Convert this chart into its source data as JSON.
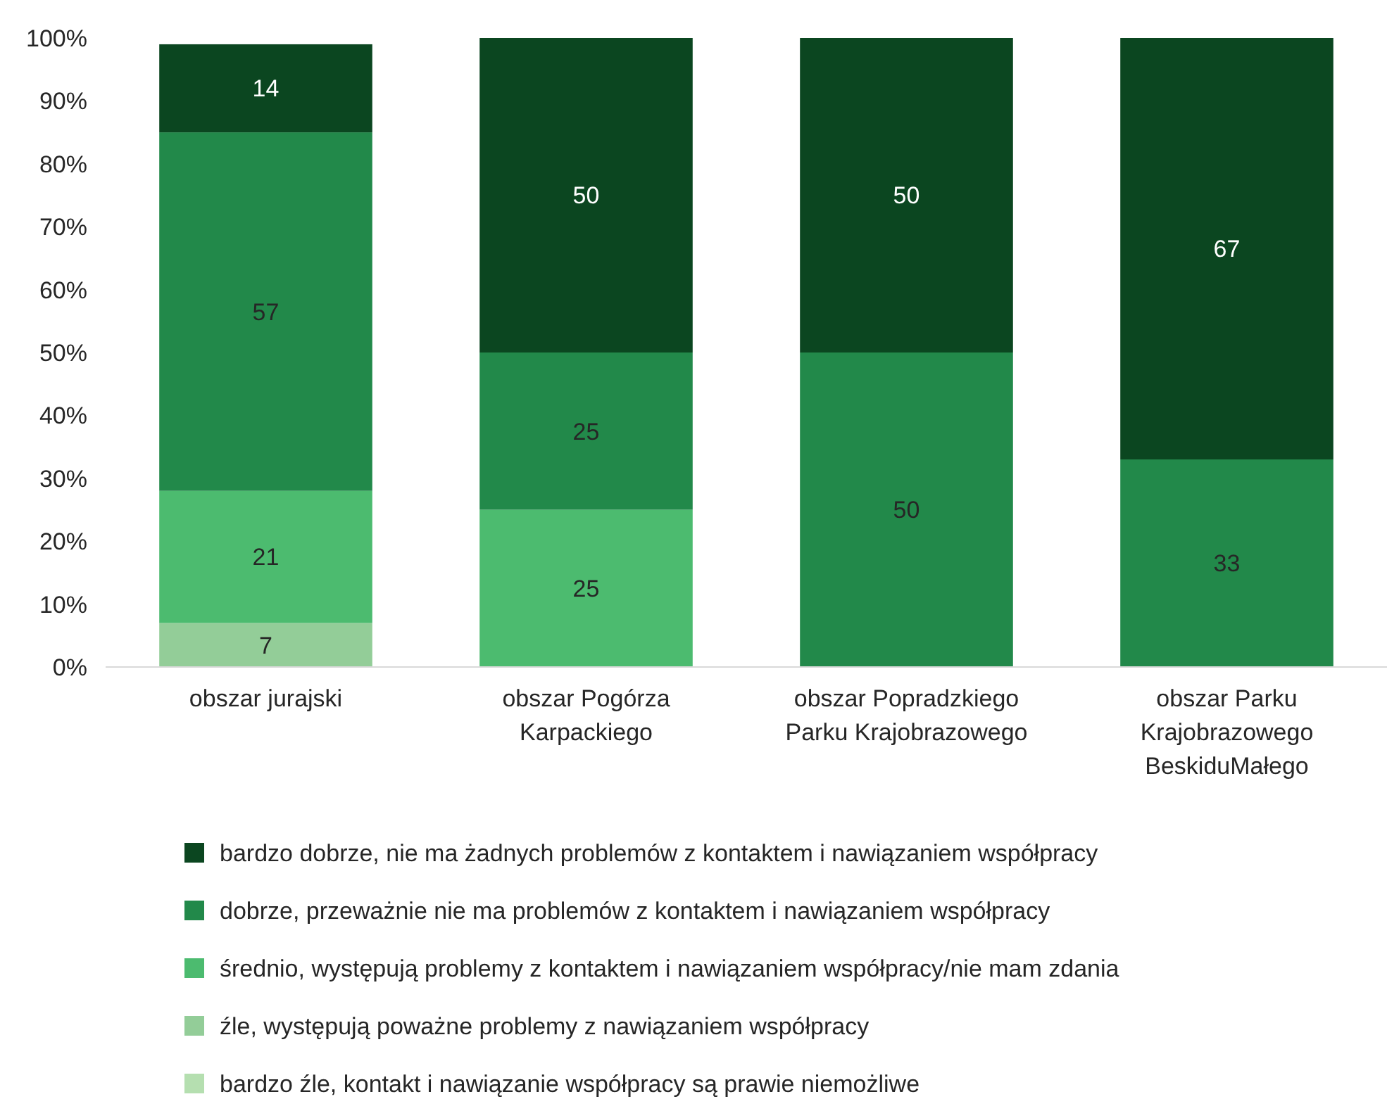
{
  "chart_data": {
    "type": "bar",
    "stacked": true,
    "categories": [
      "obszar jurajski",
      "obszar Pogórza Karpackiego",
      "obszar Popradzkiego Parku Krajobrazowego",
      "obszar Parku Krajobrazowego BeskiduMałego"
    ],
    "ylim": [
      0,
      100
    ],
    "yticks": [
      {
        "value": 0,
        "label": "0%"
      },
      {
        "value": 10,
        "label": "10%"
      },
      {
        "value": 20,
        "label": "20%"
      },
      {
        "value": 30,
        "label": "30%"
      },
      {
        "value": 40,
        "label": "40%"
      },
      {
        "value": 50,
        "label": "50%"
      },
      {
        "value": 60,
        "label": "60%"
      },
      {
        "value": 70,
        "label": "70%"
      },
      {
        "value": 80,
        "label": "80%"
      },
      {
        "value": 90,
        "label": "90%"
      },
      {
        "value": 100,
        "label": "100%"
      }
    ],
    "grid": false,
    "legend": "bottom",
    "series": [
      {
        "name": "bardzo źle, kontakt i nawiązanie współpracy są prawie niemożliwe",
        "color": "#b5dfb0",
        "values": [
          0,
          0,
          0,
          0
        ],
        "value_labels": [
          null,
          null,
          null,
          null
        ]
      },
      {
        "name": "źle, występują poważne problemy z nawiązaniem współpracy",
        "color": "#93cd98",
        "values": [
          7,
          0,
          0,
          0
        ],
        "value_labels": [
          "7",
          null,
          null,
          null
        ]
      },
      {
        "name": "średnio, występują problemy z kontaktem i nawiązaniem współpracy/nie mam zdania",
        "color": "#4cbb6f",
        "values": [
          21,
          25,
          0,
          0
        ],
        "value_labels": [
          "21",
          "25",
          null,
          null
        ]
      },
      {
        "name": "dobrze, przeważnie nie ma problemów z kontaktem i nawiązaniem współpracy",
        "color": "#22894a",
        "values": [
          57,
          25,
          50,
          33
        ],
        "value_labels": [
          "57",
          "25",
          "50",
          "33"
        ]
      },
      {
        "name": "bardzo dobrze, nie ma żadnych problemów z kontaktem i nawiązaniem współpracy",
        "color": "#0b4620",
        "values": [
          14,
          50,
          50,
          67
        ],
        "value_labels": [
          "14",
          "50",
          "50",
          "67"
        ]
      }
    ]
  }
}
